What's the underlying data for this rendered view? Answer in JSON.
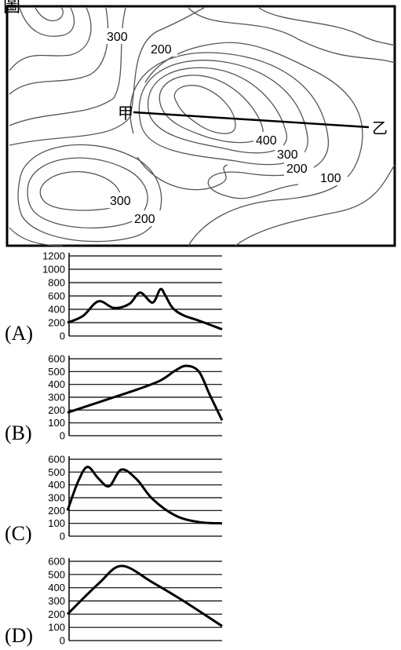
{
  "heading": "圖",
  "map": {
    "contour_labels": [
      "300",
      "200",
      "400",
      "300",
      "200",
      "100",
      "300",
      "200"
    ],
    "point_start": "甲",
    "point_end": "乙"
  },
  "profiles": [
    {
      "option": "(A)",
      "y_ticks": [
        "1200",
        "1000",
        "800",
        "600",
        "400",
        "200",
        "0"
      ],
      "chart_data": {
        "type": "line",
        "ylim": [
          0,
          1200
        ],
        "x": [
          0,
          0.1,
          0.2,
          0.3,
          0.4,
          0.47,
          0.55,
          0.6,
          0.63,
          0.68,
          0.75,
          0.85,
          1.0
        ],
        "values": [
          200,
          300,
          520,
          420,
          480,
          650,
          500,
          700,
          620,
          420,
          310,
          230,
          100
        ]
      }
    },
    {
      "option": "(B)",
      "y_ticks": [
        "600",
        "500",
        "400",
        "300",
        "200",
        "100",
        "0"
      ],
      "chart_data": {
        "type": "line",
        "ylim": [
          0,
          600
        ],
        "x": [
          0,
          0.15,
          0.3,
          0.45,
          0.6,
          0.7,
          0.77,
          0.85,
          0.92,
          1.0
        ],
        "values": [
          180,
          240,
          300,
          360,
          430,
          510,
          545,
          500,
          320,
          120
        ]
      }
    },
    {
      "option": "(C)",
      "y_ticks": [
        "600",
        "500",
        "400",
        "300",
        "200",
        "100",
        "0"
      ],
      "chart_data": {
        "type": "line",
        "ylim": [
          0,
          600
        ],
        "x": [
          0,
          0.07,
          0.13,
          0.2,
          0.27,
          0.35,
          0.45,
          0.55,
          0.7,
          0.85,
          1.0
        ],
        "values": [
          200,
          430,
          540,
          450,
          390,
          520,
          440,
          290,
          160,
          110,
          100
        ]
      }
    },
    {
      "option": "(D)",
      "y_ticks": [
        "600",
        "500",
        "400",
        "300",
        "200",
        "100",
        "0"
      ],
      "chart_data": {
        "type": "line",
        "ylim": [
          0,
          600
        ],
        "x": [
          0,
          0.2,
          0.35,
          0.55,
          0.75,
          1.0
        ],
        "values": [
          200,
          430,
          565,
          440,
          300,
          110
        ]
      }
    }
  ]
}
